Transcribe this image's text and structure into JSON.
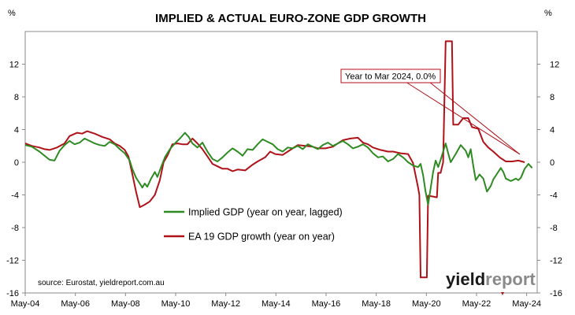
{
  "chart_data": {
    "type": "line",
    "title": "IMPLIED & ACTUAL EURO-ZONE GDP GROWTH",
    "y_unit_left": "%",
    "y_unit_right": "%",
    "ylim": [
      -16,
      16
    ],
    "y_ticks": [
      12,
      8,
      4,
      0,
      -4,
      -8,
      -12,
      -16
    ],
    "y_tick_labels": [
      "12",
      "8",
      "4",
      "0",
      "-4",
      "-8",
      "-12",
      "-16"
    ],
    "x_range": [
      2004.33,
      2024.75
    ],
    "x_ticks": [
      2004.33,
      2006.33,
      2008.33,
      2010.33,
      2012.33,
      2014.33,
      2016.33,
      2018.33,
      2020.33,
      2022.33,
      2024.33
    ],
    "x_tick_labels": [
      "May-04",
      "May-06",
      "May-08",
      "May-10",
      "May-12",
      "May-14",
      "May-16",
      "May-18",
      "May-20",
      "May-22",
      "May-24"
    ],
    "grid": "none",
    "legend_position": "center-left",
    "series": [
      {
        "name": "Implied GDP (year on year, lagged)",
        "color": "#2e8b22",
        "points": [
          [
            2004.33,
            2.1
          ],
          [
            2004.6,
            1.9
          ],
          [
            2004.9,
            1.3
          ],
          [
            2005.1,
            0.8
          ],
          [
            2005.3,
            0.3
          ],
          [
            2005.5,
            0.2
          ],
          [
            2005.7,
            1.4
          ],
          [
            2005.9,
            2.1
          ],
          [
            2006.1,
            2.6
          ],
          [
            2006.3,
            2.2
          ],
          [
            2006.5,
            2.4
          ],
          [
            2006.7,
            2.9
          ],
          [
            2006.9,
            2.6
          ],
          [
            2007.1,
            2.3
          ],
          [
            2007.3,
            2.1
          ],
          [
            2007.5,
            2.0
          ],
          [
            2007.7,
            2.5
          ],
          [
            2007.9,
            2.2
          ],
          [
            2008.1,
            1.6
          ],
          [
            2008.3,
            1.1
          ],
          [
            2008.5,
            0.2
          ],
          [
            2008.6,
            -0.8
          ],
          [
            2008.75,
            -1.9
          ],
          [
            2008.9,
            -2.6
          ],
          [
            2009.0,
            -3.1
          ],
          [
            2009.1,
            -2.6
          ],
          [
            2009.2,
            -3.0
          ],
          [
            2009.35,
            -2.0
          ],
          [
            2009.5,
            -1.2
          ],
          [
            2009.6,
            -1.8
          ],
          [
            2009.75,
            -0.6
          ],
          [
            2009.9,
            0.6
          ],
          [
            2010.1,
            1.6
          ],
          [
            2010.3,
            2.3
          ],
          [
            2010.5,
            2.9
          ],
          [
            2010.7,
            3.6
          ],
          [
            2010.85,
            3.1
          ],
          [
            2011.0,
            2.3
          ],
          [
            2011.2,
            1.8
          ],
          [
            2011.4,
            2.4
          ],
          [
            2011.6,
            1.3
          ],
          [
            2011.8,
            0.4
          ],
          [
            2012.0,
            0.1
          ],
          [
            2012.2,
            0.6
          ],
          [
            2012.4,
            1.2
          ],
          [
            2012.6,
            1.7
          ],
          [
            2012.8,
            1.3
          ],
          [
            2013.0,
            0.8
          ],
          [
            2013.2,
            1.6
          ],
          [
            2013.4,
            1.5
          ],
          [
            2013.6,
            2.2
          ],
          [
            2013.8,
            2.8
          ],
          [
            2014.0,
            2.5
          ],
          [
            2014.2,
            2.2
          ],
          [
            2014.4,
            1.6
          ],
          [
            2014.6,
            1.3
          ],
          [
            2014.8,
            1.8
          ],
          [
            2015.0,
            1.7
          ],
          [
            2015.2,
            2.0
          ],
          [
            2015.4,
            1.6
          ],
          [
            2015.6,
            2.2
          ],
          [
            2015.8,
            1.9
          ],
          [
            2016.0,
            1.6
          ],
          [
            2016.2,
            2.1
          ],
          [
            2016.4,
            2.4
          ],
          [
            2016.6,
            2.0
          ],
          [
            2016.8,
            2.3
          ],
          [
            2017.0,
            2.6
          ],
          [
            2017.2,
            2.2
          ],
          [
            2017.4,
            1.7
          ],
          [
            2017.6,
            1.9
          ],
          [
            2017.8,
            2.2
          ],
          [
            2018.0,
            1.8
          ],
          [
            2018.2,
            1.1
          ],
          [
            2018.4,
            0.6
          ],
          [
            2018.6,
            0.7
          ],
          [
            2018.8,
            0.1
          ],
          [
            2019.0,
            0.4
          ],
          [
            2019.2,
            1.0
          ],
          [
            2019.4,
            0.6
          ],
          [
            2019.6,
            0.0
          ],
          [
            2019.8,
            -0.4
          ],
          [
            2020.0,
            -0.6
          ],
          [
            2020.1,
            -0.2
          ],
          [
            2020.2,
            -1.6
          ],
          [
            2020.3,
            -3.6
          ],
          [
            2020.4,
            -5.2
          ],
          [
            2020.5,
            -3.2
          ],
          [
            2020.6,
            -1.2
          ],
          [
            2020.7,
            0.2
          ],
          [
            2020.8,
            -0.6
          ],
          [
            2020.9,
            0.3
          ],
          [
            2021.0,
            1.3
          ],
          [
            2021.1,
            2.3
          ],
          [
            2021.2,
            1.1
          ],
          [
            2021.3,
            0.0
          ],
          [
            2021.5,
            1.0
          ],
          [
            2021.7,
            2.1
          ],
          [
            2021.9,
            1.4
          ],
          [
            2022.0,
            0.6
          ],
          [
            2022.1,
            1.6
          ],
          [
            2022.2,
            -0.4
          ],
          [
            2022.3,
            -2.2
          ],
          [
            2022.45,
            -1.5
          ],
          [
            2022.6,
            -2.0
          ],
          [
            2022.75,
            -3.6
          ],
          [
            2022.9,
            -2.9
          ],
          [
            2023.0,
            -2.1
          ],
          [
            2023.15,
            -1.4
          ],
          [
            2023.3,
            -0.7
          ],
          [
            2023.4,
            -1.2
          ],
          [
            2023.5,
            -2.0
          ],
          [
            2023.7,
            -2.3
          ],
          [
            2023.9,
            -2.0
          ],
          [
            2024.0,
            -2.2
          ],
          [
            2024.1,
            -1.9
          ],
          [
            2024.25,
            -0.8
          ],
          [
            2024.4,
            -0.2
          ],
          [
            2024.55,
            -0.7
          ]
        ]
      },
      {
        "name": "EA 19 GDP growth (year on year)",
        "color": "#b0121a",
        "points": [
          [
            2004.33,
            2.3
          ],
          [
            2004.6,
            2.0
          ],
          [
            2004.9,
            1.8
          ],
          [
            2005.1,
            1.6
          ],
          [
            2005.3,
            1.5
          ],
          [
            2005.6,
            1.8
          ],
          [
            2005.9,
            2.3
          ],
          [
            2006.1,
            3.2
          ],
          [
            2006.4,
            3.6
          ],
          [
            2006.6,
            3.5
          ],
          [
            2006.8,
            3.8
          ],
          [
            2007.1,
            3.5
          ],
          [
            2007.4,
            3.1
          ],
          [
            2007.7,
            2.8
          ],
          [
            2007.9,
            2.3
          ],
          [
            2008.1,
            2.0
          ],
          [
            2008.3,
            1.5
          ],
          [
            2008.45,
            0.7
          ],
          [
            2008.6,
            -1.4
          ],
          [
            2008.75,
            -3.6
          ],
          [
            2008.9,
            -5.5
          ],
          [
            2009.1,
            -5.2
          ],
          [
            2009.3,
            -4.8
          ],
          [
            2009.5,
            -4.0
          ],
          [
            2009.7,
            -2.2
          ],
          [
            2009.85,
            0.0
          ],
          [
            2010.0,
            0.8
          ],
          [
            2010.2,
            2.2
          ],
          [
            2010.4,
            2.3
          ],
          [
            2010.6,
            2.2
          ],
          [
            2010.8,
            2.2
          ],
          [
            2011.0,
            2.9
          ],
          [
            2011.2,
            2.3
          ],
          [
            2011.4,
            1.6
          ],
          [
            2011.6,
            0.7
          ],
          [
            2011.8,
            -0.2
          ],
          [
            2012.0,
            -0.5
          ],
          [
            2012.2,
            -0.8
          ],
          [
            2012.4,
            -0.8
          ],
          [
            2012.6,
            -1.1
          ],
          [
            2012.8,
            -0.9
          ],
          [
            2013.1,
            -1.0
          ],
          [
            2013.4,
            -0.3
          ],
          [
            2013.6,
            0.1
          ],
          [
            2013.9,
            0.6
          ],
          [
            2014.1,
            1.3
          ],
          [
            2014.3,
            1.0
          ],
          [
            2014.6,
            0.9
          ],
          [
            2014.8,
            1.3
          ],
          [
            2015.0,
            1.7
          ],
          [
            2015.2,
            2.1
          ],
          [
            2015.5,
            2.0
          ],
          [
            2015.8,
            1.9
          ],
          [
            2016.0,
            1.7
          ],
          [
            2016.3,
            1.7
          ],
          [
            2016.6,
            1.9
          ],
          [
            2016.8,
            2.3
          ],
          [
            2017.0,
            2.7
          ],
          [
            2017.3,
            2.9
          ],
          [
            2017.6,
            3.0
          ],
          [
            2017.8,
            2.4
          ],
          [
            2018.0,
            2.2
          ],
          [
            2018.2,
            1.8
          ],
          [
            2018.5,
            1.5
          ],
          [
            2018.8,
            1.3
          ],
          [
            2019.0,
            1.3
          ],
          [
            2019.3,
            1.1
          ],
          [
            2019.6,
            1.0
          ],
          [
            2019.8,
            -0.1
          ],
          [
            2020.0,
            -3.1
          ],
          [
            2020.05,
            -4.0
          ],
          [
            2020.1,
            -14.1
          ],
          [
            2020.35,
            -14.1
          ],
          [
            2020.4,
            -4.1
          ],
          [
            2020.6,
            -4.2
          ],
          [
            2020.75,
            -4.3
          ],
          [
            2020.8,
            -1.3
          ],
          [
            2020.9,
            -1.3
          ],
          [
            2021.0,
            0.0
          ],
          [
            2021.1,
            14.8
          ],
          [
            2021.35,
            14.8
          ],
          [
            2021.4,
            4.6
          ],
          [
            2021.6,
            4.6
          ],
          [
            2021.8,
            5.4
          ],
          [
            2022.0,
            5.4
          ],
          [
            2022.15,
            4.3
          ],
          [
            2022.4,
            4.1
          ],
          [
            2022.6,
            2.5
          ],
          [
            2022.8,
            1.8
          ],
          [
            2023.0,
            1.3
          ],
          [
            2023.25,
            0.6
          ],
          [
            2023.5,
            0.1
          ],
          [
            2023.75,
            0.1
          ],
          [
            2024.0,
            0.2
          ],
          [
            2024.25,
            0.0
          ]
        ]
      }
    ],
    "annotations": [
      {
        "text": "Year to Mar 2024, 0.0%"
      }
    ],
    "source": "source: Eurostat, yieldreport.com.au",
    "logo": [
      "yield",
      "report"
    ]
  }
}
